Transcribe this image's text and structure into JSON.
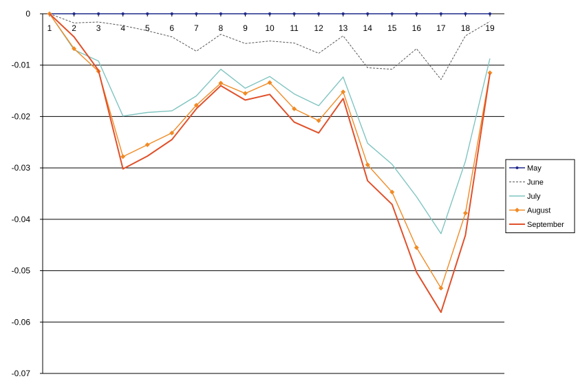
{
  "chart_data": {
    "type": "line",
    "title": "",
    "xlabel": "",
    "ylabel": "",
    "categories": [
      "1",
      "2",
      "3",
      "4",
      "5",
      "6",
      "7",
      "8",
      "9",
      "10",
      "11",
      "12",
      "13",
      "14",
      "15",
      "16",
      "17",
      "18",
      "19"
    ],
    "ylim": [
      -0.07,
      0
    ],
    "yticks": [
      0,
      -0.01,
      -0.02,
      -0.03,
      -0.04,
      -0.05,
      -0.06,
      -0.07
    ],
    "ytick_labels": [
      "0",
      "-0.01",
      "-0.02",
      "-0.03",
      "-0.04",
      "-0.05",
      "-0.06",
      "-0.07"
    ],
    "grid": true,
    "legend_position": "right",
    "series": [
      {
        "name": "May",
        "color": "#1f2a8a",
        "style": "solid-marker",
        "values": [
          0,
          0,
          0,
          0,
          0,
          0,
          0,
          0,
          0,
          0,
          0,
          0,
          0,
          0,
          0,
          0,
          0,
          0,
          0
        ]
      },
      {
        "name": "June",
        "color": "#555555",
        "style": "dotted",
        "values": [
          0,
          -0.0018,
          -0.0016,
          -0.0023,
          -0.0033,
          -0.0045,
          -0.0073,
          -0.004,
          -0.0058,
          -0.0053,
          -0.0057,
          -0.0077,
          -0.0043,
          -0.0105,
          -0.0108,
          -0.0068,
          -0.0128,
          -0.0043,
          -0.0015
        ]
      },
      {
        "name": "July",
        "color": "#7fc4c0",
        "style": "solid",
        "values": [
          0,
          -0.007,
          -0.0092,
          -0.0199,
          -0.0192,
          -0.0189,
          -0.016,
          -0.0108,
          -0.0145,
          -0.0122,
          -0.0156,
          -0.0179,
          -0.0123,
          -0.0252,
          -0.0293,
          -0.0356,
          -0.0428,
          -0.0287,
          -0.0087
        ]
      },
      {
        "name": "August",
        "color": "#f08a24",
        "style": "diamond",
        "values": [
          0,
          -0.0068,
          -0.0112,
          -0.0278,
          -0.0255,
          -0.0232,
          -0.0178,
          -0.0135,
          -0.0155,
          -0.0134,
          -0.0185,
          -0.0208,
          -0.0152,
          -0.0294,
          -0.0347,
          -0.0455,
          -0.0534,
          -0.0388,
          -0.0115
        ]
      },
      {
        "name": "September",
        "color": "#e0502a",
        "style": "solid-thick",
        "values": [
          0,
          -0.0045,
          -0.011,
          -0.0302,
          -0.0277,
          -0.0245,
          -0.0185,
          -0.014,
          -0.0168,
          -0.0157,
          -0.0211,
          -0.0232,
          -0.0165,
          -0.0325,
          -0.0371,
          -0.0503,
          -0.0581,
          -0.0431,
          -0.0116
        ]
      }
    ]
  }
}
